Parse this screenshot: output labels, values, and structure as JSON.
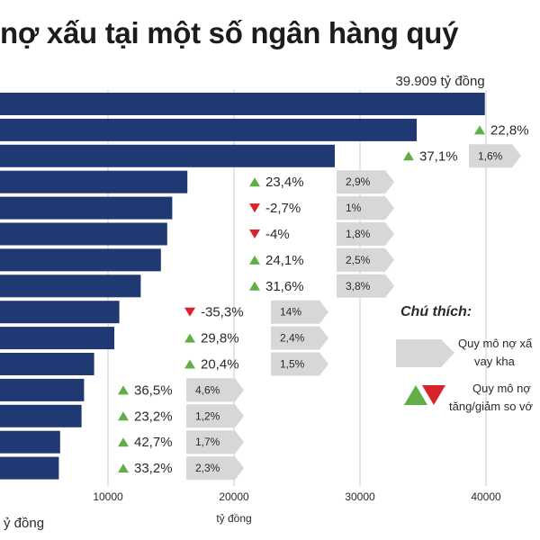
{
  "title": "nợ xấu tại một số ngân hàng quý",
  "colors": {
    "bar": "#1f3a72",
    "up": "#5fae46",
    "down": "#d8232a",
    "tag": "#d6d7d9"
  },
  "chart_data": {
    "type": "bar",
    "orientation": "horizontal",
    "xlim": [
      0,
      45000
    ],
    "xticks": [
      10000,
      20000,
      30000,
      40000
    ],
    "xtick_labels": [
      "10000",
      "20000",
      "30000",
      "40000"
    ],
    "x_unit_label": "tỷ đồng",
    "bottom_left_label": "ỷ đồng",
    "top_value_label": "39.909 tỷ đồng",
    "values": [
      39909,
      34500,
      28000,
      16300,
      15100,
      14700,
      14200,
      12600,
      10900,
      10500,
      8900,
      8100,
      7900,
      6200,
      6100
    ],
    "change": [
      null,
      "22,8%",
      "37,1%",
      "23,4%",
      "-2,7%",
      "-4%",
      "24,1%",
      "31,6%",
      "-35,3%",
      "29,8%",
      "20,4%",
      "36,5%",
      "23,2%",
      "42,7%",
      "33,2%"
    ],
    "direction": [
      null,
      "up",
      "up",
      "up",
      "down",
      "down",
      "up",
      "up",
      "down",
      "up",
      "up",
      "up",
      "up",
      "up",
      "up"
    ],
    "share": [
      null,
      null,
      "1,6%",
      "2,9%",
      "1%",
      "1,8%",
      "2,5%",
      "3,8%",
      "14%",
      "2,4%",
      "1,5%",
      "4,6%",
      "1,2%",
      "1,7%",
      "2,3%"
    ]
  },
  "legend": {
    "title": "Chú thích:",
    "tag_text": [
      "Quy mô nợ xấ",
      "vay kha"
    ],
    "arrow_text": [
      "Quy mô nợ",
      "tăng/giảm so vớ"
    ]
  }
}
